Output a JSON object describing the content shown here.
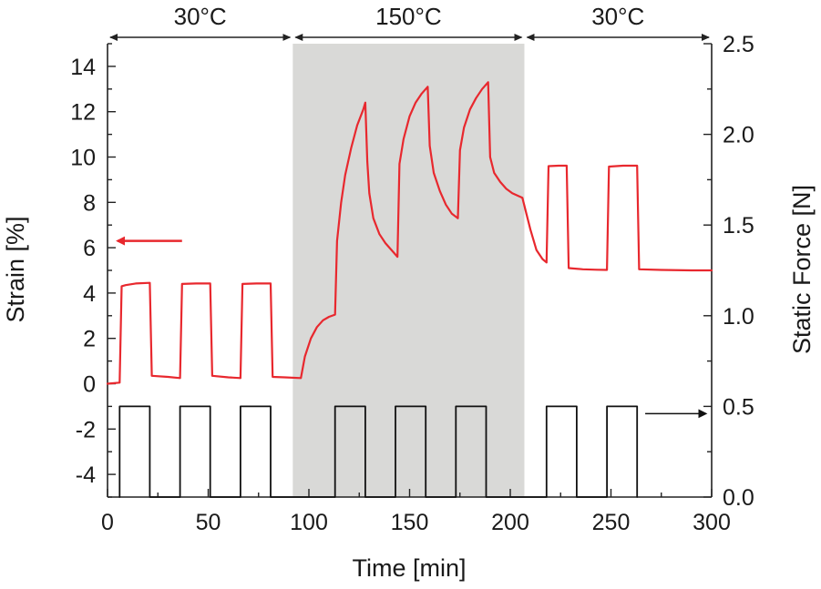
{
  "chart_data": {
    "type": "line",
    "xlabel": "Time [min]",
    "ylabel_left": "Strain [%]",
    "ylabel_right": "Static Force [N]",
    "xlim": [
      0,
      300
    ],
    "ylim_left": [
      -5,
      15
    ],
    "ylim_right": [
      0.0,
      2.5
    ],
    "x_ticks": [
      "0",
      "50",
      "100",
      "150",
      "200",
      "250",
      "300"
    ],
    "y_left_ticks": [
      "-4",
      "-2",
      "0",
      "2",
      "4",
      "6",
      "8",
      "10",
      "12",
      "14"
    ],
    "y_right_ticks": [
      "0.0",
      "0.5",
      "1.0",
      "1.5",
      "2.0",
      "2.5"
    ],
    "grid": false,
    "temperature_regions": [
      {
        "label": "30°C",
        "x": [
          0,
          92
        ],
        "shaded": false
      },
      {
        "label": "150°C",
        "x": [
          92,
          207
        ],
        "shaded": true
      },
      {
        "label": "30°C",
        "x": [
          207,
          300
        ],
        "shaded": false
      }
    ],
    "shade_color": "#d9d9d7",
    "series": [
      {
        "axis": "left",
        "color": "#e8282e",
        "points": [
          [
            0,
            0
          ],
          [
            6,
            0.05
          ],
          [
            7,
            4.3
          ],
          [
            9,
            4.35
          ],
          [
            14,
            4.42
          ],
          [
            21,
            4.45
          ],
          [
            22,
            0.35
          ],
          [
            30,
            0.3
          ],
          [
            36,
            0.25
          ],
          [
            37,
            4.4
          ],
          [
            44,
            4.42
          ],
          [
            51,
            4.42
          ],
          [
            52,
            0.35
          ],
          [
            60,
            0.28
          ],
          [
            66,
            0.25
          ],
          [
            67,
            4.4
          ],
          [
            74,
            4.42
          ],
          [
            81,
            4.42
          ],
          [
            82,
            0.3
          ],
          [
            88,
            0.28
          ],
          [
            96,
            0.25
          ],
          [
            98,
            1.2
          ],
          [
            101,
            2.0
          ],
          [
            104,
            2.5
          ],
          [
            107,
            2.8
          ],
          [
            110,
            2.95
          ],
          [
            113,
            3.05
          ],
          [
            114,
            6.3
          ],
          [
            116,
            8.0
          ],
          [
            118,
            9.2
          ],
          [
            121,
            10.4
          ],
          [
            124,
            11.4
          ],
          [
            127,
            12.1
          ],
          [
            128,
            12.4
          ],
          [
            129,
            9.8
          ],
          [
            130,
            8.4
          ],
          [
            132,
            7.3
          ],
          [
            135,
            6.6
          ],
          [
            138,
            6.2
          ],
          [
            141,
            5.9
          ],
          [
            144,
            5.6
          ],
          [
            145,
            9.7
          ],
          [
            147,
            10.8
          ],
          [
            150,
            11.8
          ],
          [
            153,
            12.4
          ],
          [
            156,
            12.8
          ],
          [
            159,
            13.1
          ],
          [
            160,
            10.5
          ],
          [
            162,
            9.3
          ],
          [
            165,
            8.5
          ],
          [
            168,
            7.9
          ],
          [
            171,
            7.5
          ],
          [
            174,
            7.3
          ],
          [
            175,
            10.3
          ],
          [
            177,
            11.3
          ],
          [
            180,
            12.1
          ],
          [
            183,
            12.6
          ],
          [
            186,
            13.0
          ],
          [
            189,
            13.3
          ],
          [
            190,
            10.0
          ],
          [
            192,
            9.3
          ],
          [
            195,
            8.9
          ],
          [
            198,
            8.6
          ],
          [
            201,
            8.4
          ],
          [
            206,
            8.2
          ],
          [
            208,
            7.5
          ],
          [
            210,
            6.8
          ],
          [
            213,
            5.9
          ],
          [
            216,
            5.5
          ],
          [
            218,
            5.35
          ],
          [
            219,
            9.6
          ],
          [
            224,
            9.62
          ],
          [
            228,
            9.62
          ],
          [
            229,
            5.1
          ],
          [
            236,
            5.05
          ],
          [
            243,
            5.03
          ],
          [
            248,
            5.02
          ],
          [
            249,
            9.58
          ],
          [
            256,
            9.62
          ],
          [
            263,
            9.62
          ],
          [
            264,
            5.05
          ],
          [
            275,
            5.02
          ],
          [
            290,
            5.0
          ],
          [
            300,
            5.0
          ]
        ]
      },
      {
        "axis": "right",
        "color": "#111111",
        "points": [
          [
            6,
            0
          ],
          [
            6,
            0.5
          ],
          [
            21,
            0.5
          ],
          [
            21,
            0
          ],
          [
            36,
            0
          ],
          [
            36,
            0.5
          ],
          [
            51,
            0.5
          ],
          [
            51,
            0
          ],
          [
            66,
            0
          ],
          [
            66,
            0.5
          ],
          [
            81,
            0.5
          ],
          [
            81,
            0
          ],
          [
            113,
            0
          ],
          [
            113,
            0.5
          ],
          [
            128,
            0.5
          ],
          [
            128,
            0
          ],
          [
            143,
            0
          ],
          [
            143,
            0.5
          ],
          [
            158,
            0.5
          ],
          [
            158,
            0
          ],
          [
            173,
            0
          ],
          [
            173,
            0.5
          ],
          [
            188,
            0.5
          ],
          [
            188,
            0
          ],
          [
            218,
            0
          ],
          [
            218,
            0.5
          ],
          [
            233,
            0.5
          ],
          [
            233,
            0
          ],
          [
            248,
            0
          ],
          [
            248,
            0.5
          ],
          [
            263,
            0.5
          ],
          [
            263,
            0
          ]
        ]
      }
    ],
    "annotations": [
      {
        "type": "arrow",
        "points_to": "left axis",
        "color": "#e8282e",
        "x": [
          37,
          5
        ],
        "y": 6.3
      },
      {
        "type": "arrow",
        "points_to": "right axis",
        "color": "#111111",
        "x": [
          267,
          297
        ],
        "y": 0.46
      }
    ]
  }
}
